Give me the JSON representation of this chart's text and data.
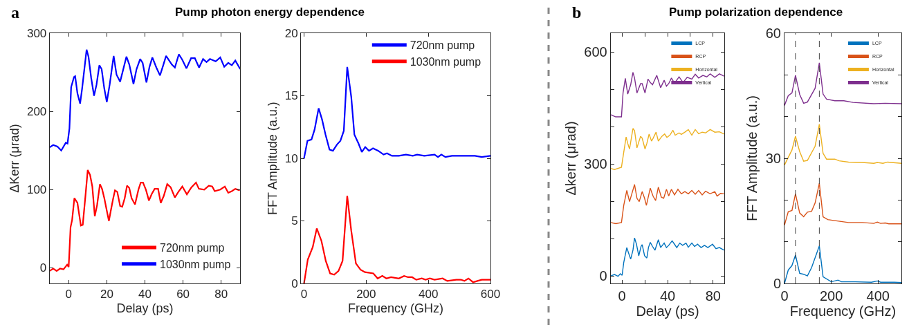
{
  "chart_data": [
    {
      "type": "line",
      "title": "Pump photon energy dependence",
      "annotations": [
        "a"
      ],
      "xlabel": "Delay (ps)",
      "ylabel": "ΔKerr (μrad)",
      "xlim": [
        -10,
        90
      ],
      "xticks": [
        0,
        20,
        40,
        60,
        80
      ],
      "ylim": [
        -20,
        300
      ],
      "yticks": [
        0,
        100,
        200,
        300
      ],
      "legend": "bottom right",
      "series": [
        {
          "name": "720nm pump",
          "color": "#ff0000",
          "x": [
            -10,
            -8.1,
            -6.3,
            -4.5,
            -2.7,
            -0.8,
            0,
            1,
            1.8,
            3,
            4.6,
            6.4,
            7.4,
            8.8,
            10,
            11.2,
            12.4,
            13.7,
            14.9,
            16.4,
            17.5,
            18.7,
            20,
            21.1,
            22.1,
            23.3,
            24.3,
            25.5,
            27,
            28.1,
            29.4,
            30.6,
            31.8,
            33,
            34.8,
            36.6,
            37.8,
            39,
            40.5,
            42.1,
            43.5,
            45.1,
            46.9,
            48.3,
            49.9,
            51.7,
            53.5,
            55.7,
            57.8,
            59.6,
            62,
            64.4,
            66.8,
            68.3,
            71.1,
            73.5,
            75.3,
            76.6,
            79.5,
            81.9,
            83.7,
            85.6,
            87.4,
            89.8
          ],
          "values": [
            -4,
            -1,
            -4,
            -1,
            -2,
            4,
            1,
            52,
            61,
            89,
            83,
            54,
            55,
            92,
            125,
            119,
            104,
            66,
            80,
            107,
            101,
            89,
            73,
            60,
            73,
            88,
            99,
            97,
            79,
            78,
            89,
            105,
            102,
            89,
            81,
            100,
            109,
            109,
            100,
            86,
            94,
            101,
            101,
            83,
            92,
            107,
            103,
            90,
            98,
            104,
            94,
            103,
            109,
            101,
            100,
            105,
            104,
            98,
            100,
            104,
            96,
            98,
            101,
            99
          ]
        },
        {
          "name": "1030nm pump",
          "color": "#0000ff",
          "x": [
            -10,
            -8.1,
            -5.9,
            -3.9,
            -1.5,
            -0.6,
            0.4,
            1.3,
            2.8,
            3.4,
            4.6,
            6,
            7,
            7.9,
            9.4,
            10.4,
            11.8,
            13.3,
            14.6,
            16.1,
            17.3,
            18.7,
            20,
            21.5,
            23.6,
            25.1,
            27,
            30.3,
            31.8,
            34,
            35.6,
            37.5,
            38.8,
            40.8,
            42.4,
            43.9,
            46,
            47.9,
            49.6,
            51.1,
            54.1,
            55.7,
            57.8,
            59.6,
            61.8,
            64.2,
            66.2,
            68.4,
            70.5,
            72.3,
            74.1,
            77.1,
            79.5,
            81.6,
            83.7,
            85.6,
            87.4,
            90
          ],
          "values": [
            154,
            157,
            155,
            150,
            160,
            159,
            178,
            231,
            244,
            245,
            223,
            210,
            228,
            247,
            279,
            270,
            243,
            220,
            234,
            259,
            254,
            229,
            212,
            234,
            271,
            247,
            238,
            270,
            260,
            235,
            254,
            267,
            262,
            237,
            257,
            269,
            256,
            246,
            259,
            271,
            260,
            256,
            273,
            266,
            255,
            268,
            268,
            256,
            267,
            263,
            267,
            264,
            269,
            257,
            262,
            259,
            265,
            254
          ]
        }
      ]
    },
    {
      "type": "line",
      "xlabel": "Frequency (GHz)",
      "ylabel": "FFT Amplitude (a.u.)",
      "xlim": [
        -10,
        600
      ],
      "xticks": [
        0,
        200,
        400,
        600
      ],
      "ylim": [
        0,
        20
      ],
      "yticks": [
        0,
        5,
        10,
        15,
        20
      ],
      "legend": "top right",
      "series": [
        {
          "name": "720nm pump",
          "color": "#0000ff",
          "x": [
            0,
            11,
            24,
            34,
            47,
            58,
            69,
            82,
            93,
            106,
            117,
            128,
            139,
            152,
            162,
            175,
            186,
            197,
            209,
            222,
            239,
            256,
            267,
            283,
            305,
            328,
            350,
            364,
            387,
            420,
            431,
            442,
            455,
            476,
            490,
            520,
            550,
            572,
            600
          ],
          "values": [
            10.0,
            11.4,
            11.5,
            12.3,
            14.0,
            13.1,
            11.9,
            10.7,
            10.6,
            11.1,
            11.4,
            12.2,
            17.3,
            14.9,
            11.9,
            11.2,
            10.5,
            10.9,
            10.6,
            10.8,
            10.6,
            10.3,
            10.4,
            10.2,
            10.2,
            10.3,
            10.2,
            10.3,
            10.2,
            10.3,
            10.1,
            10.3,
            10.1,
            10.2,
            10.2,
            10.2,
            10.2,
            10.1,
            10.2
          ]
        },
        {
          "name": "1030nm pump",
          "color": "#ff0000",
          "x": [
            0,
            12,
            28,
            41,
            56,
            70,
            84,
            97,
            111,
            124,
            139,
            152,
            167,
            182,
            196,
            223,
            237,
            252,
            265,
            280,
            305,
            322,
            335,
            348,
            361,
            379,
            391,
            405,
            420,
            446,
            461,
            490,
            505,
            516,
            529,
            544,
            558,
            572,
            600
          ],
          "values": [
            0,
            1.9,
            2.9,
            4.4,
            3.4,
            1.8,
            0.8,
            0.7,
            1.0,
            1.8,
            7.0,
            4.2,
            1.6,
            1.1,
            0.9,
            0.8,
            0.4,
            0.6,
            0.4,
            0.5,
            0.4,
            0.6,
            0.5,
            0.5,
            0.3,
            0.4,
            0.3,
            0.4,
            0.3,
            0.4,
            0.2,
            0.3,
            0.3,
            0.2,
            0.4,
            0.1,
            0.2,
            0.3,
            0.3
          ]
        }
      ]
    },
    {
      "type": "line",
      "title": "Pump polarization dependence",
      "annotations": [
        "b"
      ],
      "xlabel": "Delay (ps)",
      "ylabel": "Δkerr (μrad)",
      "xlim": [
        -10,
        90
      ],
      "xticks": [
        0,
        {
          "value": 20,
          "label": null
        },
        40,
        {
          "value": 60,
          "label": null
        },
        80
      ],
      "ylim": [
        -20,
        650
      ],
      "yticks": [
        0,
        {
          "value": 100,
          "label": null
        },
        {
          "value": 200,
          "label": null
        },
        300,
        {
          "value": 400,
          "label": null
        },
        {
          "value": 500,
          "label": null
        },
        600
      ],
      "legend": "top right",
      "series": [
        {
          "name": "LCP",
          "color": "#0072bd",
          "x": [
            -10,
            -6.6,
            -3.5,
            -1.5,
            0.1,
            1.5,
            2.9,
            4.2,
            5.6,
            7.6,
            9.6,
            11,
            12.7,
            14.7,
            16.7,
            17.7,
            19.8,
            21.8,
            23.2,
            24.8,
            26.8,
            28.9,
            31.9,
            33.9,
            37,
            39,
            41,
            44,
            46.1,
            48.1,
            50.7,
            53.2,
            56.2,
            58.2,
            61.3,
            63.7,
            66.3,
            69.4,
            72.4,
            75.4,
            79.5,
            82.5,
            85.5,
            89.6
          ],
          "values": [
            0,
            4,
            -1,
            6,
            2,
            36,
            57,
            76,
            63,
            45,
            69,
            102,
            85,
            54,
            79,
            84,
            54,
            48,
            76,
            90,
            79,
            69,
            97,
            76,
            88,
            76,
            82,
            94,
            85,
            76,
            88,
            82,
            88,
            77,
            88,
            79,
            85,
            76,
            82,
            76,
            85,
            73,
            76,
            69
          ]
        },
        {
          "name": "RCP",
          "color": "#d95319",
          "x": [
            -10,
            -5.5,
            -0.5,
            1.5,
            4.2,
            6.6,
            8.6,
            11,
            13.1,
            15.1,
            17.7,
            19.8,
            21.4,
            24.8,
            27.2,
            29.5,
            31.9,
            34.5,
            36.6,
            39,
            41,
            43.4,
            46.1,
            49.1,
            52.1,
            55.2,
            58.2,
            61.3,
            64.3,
            67.3,
            70.4,
            73.4,
            77.4,
            81.5,
            83.5,
            86.6,
            89.6
          ],
          "values": [
            143,
            140,
            143,
            189,
            229,
            199,
            220,
            245,
            208,
            199,
            226,
            208,
            189,
            235,
            214,
            202,
            238,
            211,
            208,
            232,
            214,
            232,
            217,
            232,
            220,
            226,
            220,
            229,
            219,
            229,
            217,
            227,
            220,
            226,
            214,
            221,
            220
          ]
        },
        {
          "name": "Horizontal",
          "color": "#edb120",
          "x": [
            -10,
            -6.6,
            -0.5,
            1.5,
            3.6,
            5,
            6.6,
            9.6,
            11,
            13.1,
            16.3,
            17.7,
            20.2,
            21.8,
            23.8,
            25.9,
            27.2,
            29.9,
            31.9,
            35,
            37.4,
            39.4,
            42,
            44.7,
            46.7,
            50.1,
            52.1,
            55.2,
            58.2,
            61.3,
            64.3,
            67.3,
            70.4,
            73.4,
            77.4,
            81.5,
            85.5,
            89.6
          ],
          "values": [
            288,
            285,
            291,
            331,
            372,
            355,
            340,
            395,
            389,
            343,
            374,
            369,
            340,
            355,
            380,
            361,
            368,
            385,
            361,
            374,
            380,
            371,
            377,
            390,
            377,
            383,
            379,
            385,
            392,
            377,
            392,
            381,
            385,
            383,
            392,
            385,
            386,
            380
          ]
        },
        {
          "name": "Vertical",
          "color": "#7e2f8e",
          "x": [
            -10,
            -5.5,
            -2.5,
            -0.5,
            0.9,
            2.9,
            5,
            7.6,
            9.6,
            11,
            13.1,
            16.3,
            17.7,
            20.2,
            22.8,
            24.8,
            26.8,
            30.5,
            33.9,
            37,
            39,
            41,
            43.4,
            46.1,
            50.1,
            53.6,
            57.2,
            61.3,
            64.3,
            67.3,
            71,
            74.4,
            77.4,
            81.5,
            85.5,
            89.6
          ],
          "values": [
            432,
            426,
            426,
            426,
            490,
            529,
            487,
            512,
            545,
            530,
            490,
            515,
            515,
            490,
            527,
            518,
            512,
            537,
            504,
            524,
            508,
            515,
            530,
            516,
            533,
            518,
            532,
            527,
            540,
            530,
            537,
            533,
            541,
            532,
            541,
            535
          ]
        }
      ]
    },
    {
      "type": "line",
      "xlabel": "Frequency (GHz)",
      "ylabel": "FFT Amplitude (a.u.)",
      "xlim": [
        0,
        500
      ],
      "xticks": [
        0,
        200,
        400
      ],
      "ylim": [
        0,
        60
      ],
      "yticks": [
        0,
        {
          "value": 10,
          "label": null
        },
        {
          "value": 20,
          "label": null
        },
        30,
        {
          "value": 40,
          "label": null
        },
        {
          "value": 50,
          "label": null
        },
        60
      ],
      "legend": "top right",
      "ref_lines": [
        {
          "axis": "x",
          "value": 47,
          "color": "#404040",
          "line_style": "dashed"
        },
        {
          "axis": "x",
          "value": 149,
          "color": "#404040",
          "line_style": "dashed"
        }
      ],
      "series": [
        {
          "name": "LCP",
          "color": "#0072bd",
          "x": [
            0,
            16,
            32,
            47,
            65,
            82,
            98,
            116,
            149,
            165,
            200,
            229,
            244,
            303,
            372,
            397,
            411,
            470,
            500
          ],
          "values": [
            0,
            3.2,
            4.3,
            6.8,
            2.4,
            2.2,
            1.8,
            3.8,
            9.0,
            1.6,
            0.4,
            0.8,
            0.4,
            0.4,
            0.3,
            0.6,
            0.3,
            0.3,
            0.2
          ]
        },
        {
          "name": "RCP",
          "color": "#d95319",
          "x": [
            0,
            16,
            32,
            47,
            65,
            82,
            98,
            116,
            131,
            149,
            165,
            185,
            210,
            274,
            333,
            382,
            397,
            411,
            431,
            446,
            500
          ],
          "values": [
            14.0,
            17.2,
            17.5,
            21.5,
            16.9,
            16.0,
            17.1,
            17.3,
            19.3,
            24.0,
            16.0,
            15.3,
            15.1,
            14.6,
            14.6,
            14.4,
            14.7,
            14.4,
            14.5,
            14.3,
            14.3
          ]
        },
        {
          "name": "Horizontal",
          "color": "#edb120",
          "x": [
            0,
            32,
            47,
            65,
            82,
            98,
            131,
            149,
            165,
            180,
            215,
            234,
            274,
            333,
            382,
            397,
            421,
            441,
            500
          ],
          "values": [
            28.4,
            32.0,
            35.3,
            31.6,
            29.3,
            29.5,
            32.9,
            38.2,
            31.2,
            29.8,
            29.8,
            29.4,
            29.1,
            29.0,
            28.8,
            29.0,
            28.8,
            29.1,
            28.8
          ]
        },
        {
          "name": "Vertical",
          "color": "#7e2f8e",
          "x": [
            0,
            16,
            32,
            47,
            65,
            82,
            98,
            131,
            149,
            165,
            180,
            215,
            254,
            293,
            382,
            431,
            500
          ],
          "values": [
            42.7,
            45.0,
            45.7,
            49.9,
            45.3,
            43.2,
            43.5,
            46.8,
            52.9,
            45.4,
            44.2,
            43.8,
            43.8,
            43.4,
            43.1,
            43.2,
            43.1
          ]
        }
      ]
    }
  ]
}
